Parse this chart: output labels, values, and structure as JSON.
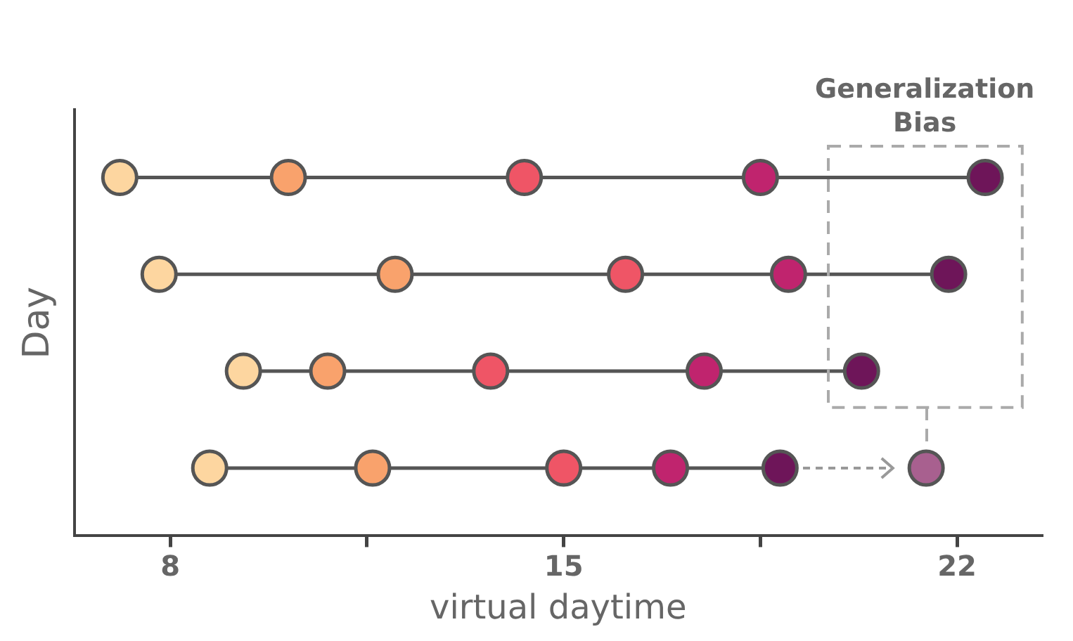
{
  "chart_data": {
    "type": "scatter",
    "orientation": "horizontal",
    "xlabel": "virtual daytime",
    "ylabel": "Day",
    "marker": "circle",
    "categories": [
      null,
      null,
      null,
      null
    ],
    "xlim": [
      6.3,
      23.5
    ],
    "xticks": [
      8,
      {
        "value": 11.5,
        "label": null
      },
      15,
      {
        "value": 18.5,
        "label": null
      },
      22
    ],
    "annotations": [
      "Generalization Bias"
    ],
    "series": [
      {
        "color": "#fdd6a0",
        "values": [
          7.1,
          7.8,
          9.3,
          8.7
        ]
      },
      {
        "color": "#f9a26c",
        "values": [
          10.1,
          12.0,
          10.8,
          11.6
        ]
      },
      {
        "color": "#ef5566",
        "values": [
          14.3,
          16.1,
          13.7,
          15.0
        ]
      },
      {
        "color": "#c0246e",
        "values": [
          18.5,
          19.0,
          17.5,
          16.9
        ]
      },
      {
        "color": "#6e1559",
        "values": [
          22.5,
          21.85,
          20.3,
          18.85
        ]
      },
      {
        "color": "#a8608f",
        "values": [
          null,
          null,
          null,
          21.45
        ]
      }
    ]
  }
}
